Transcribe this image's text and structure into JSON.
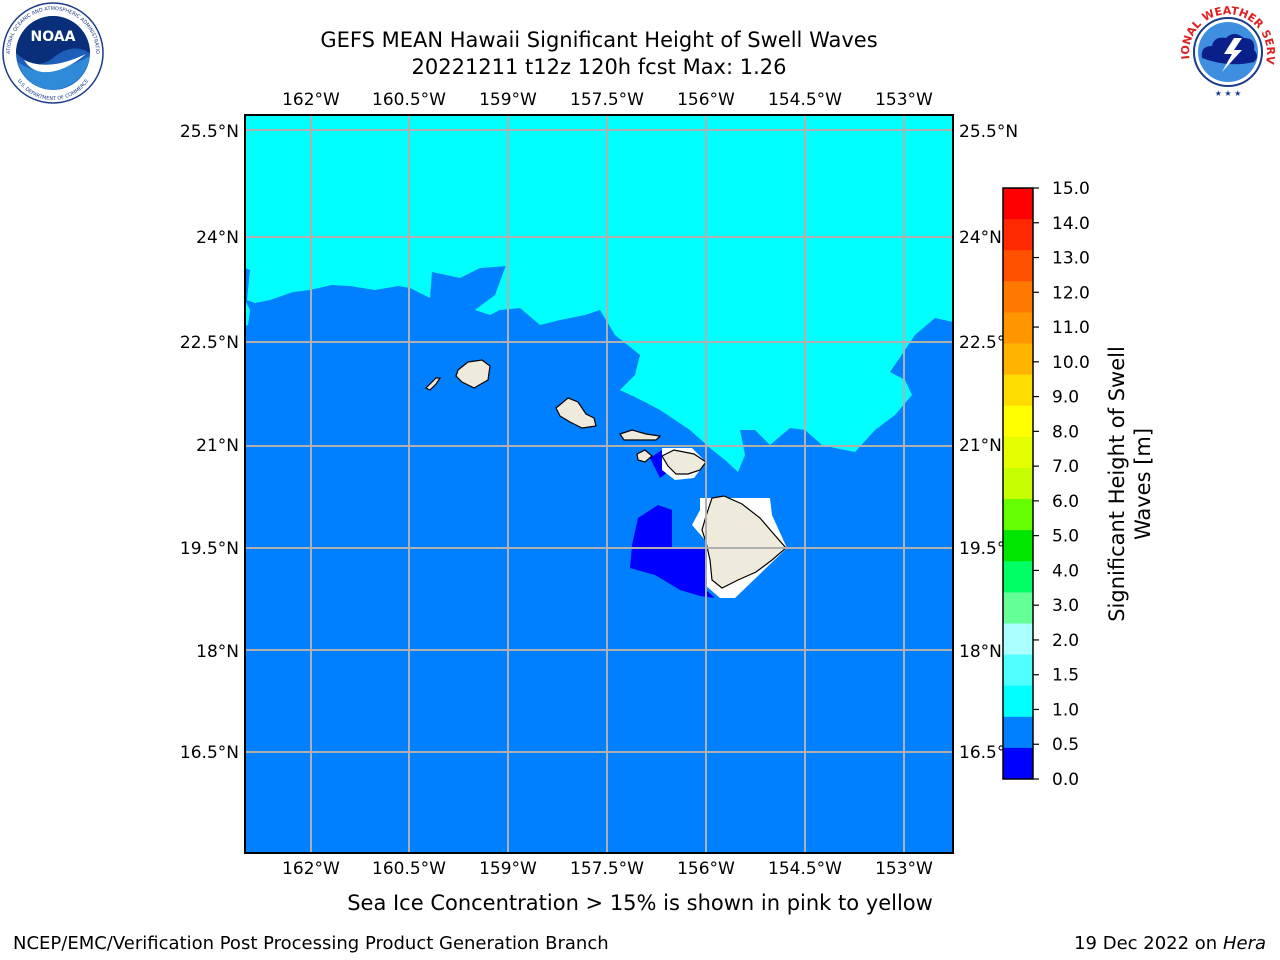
{
  "header": {
    "title": "GEFS MEAN Hawaii Significant Height of Swell Waves",
    "subtitle": "20221211 t12z 120h fcst   Max: 1.26"
  },
  "logos": {
    "left": "NOAA",
    "left_ring_top": "NATIONAL OCEANIC AND ATMOSPHERIC ADMINISTRATION",
    "left_ring_bottom": "U.S. DEPARTMENT OF COMMERCE",
    "right_ring": "NATIONAL WEATHER SERVICE"
  },
  "map": {
    "lon_labels": [
      "162°W",
      "160.5°W",
      "159°W",
      "157.5°W",
      "156°W",
      "154.5°W",
      "153°W"
    ],
    "lat_labels": [
      "25.5°N",
      "24°N",
      "22.5°N",
      "21°N",
      "19.5°N",
      "18°N",
      "16.5°N"
    ],
    "lon_extent": [
      -163.0,
      -152.25
    ],
    "lat_extent": [
      15.0,
      25.7
    ],
    "grid": true,
    "colors": {
      "band_0_0_5": "#0000ff",
      "band_0_5_1_0": "#0080ff",
      "band_1_0_1_5": "#00ffff",
      "land": "#eeeadc",
      "no_data": "#ffffff",
      "gridline": "#b0b0b0"
    }
  },
  "colorbar": {
    "label": "Significant Height of Swell Waves [m]",
    "label_line1": "Significant Height of Swell",
    "label_line2": "Waves [m]",
    "ticks": [
      "15.0",
      "14.0",
      "13.0",
      "12.0",
      "11.0",
      "10.0",
      "9.0",
      "8.0",
      "7.0",
      "6.0",
      "5.0",
      "4.0",
      "3.0",
      "2.0",
      "1.5",
      "1.0",
      "0.5",
      "0.0"
    ],
    "bands_top_to_bottom": [
      "#ff0000",
      "#ff2800",
      "#ff5000",
      "#ff7800",
      "#ff9600",
      "#ffb400",
      "#ffdc00",
      "#ffff00",
      "#e6ff00",
      "#c8ff00",
      "#64ff00",
      "#00e600",
      "#00ff64",
      "#64ff96",
      "#aaffff",
      "#50ffff",
      "#00ffff",
      "#0080ff",
      "#0000ff"
    ]
  },
  "footer": {
    "note": "Sea Ice Concentration > 15% is shown in pink to yellow",
    "credit": "NCEP/EMC/Verification Post Processing Product Generation Branch",
    "date_text": "19 Dec 2022 on",
    "host": "Hera"
  }
}
